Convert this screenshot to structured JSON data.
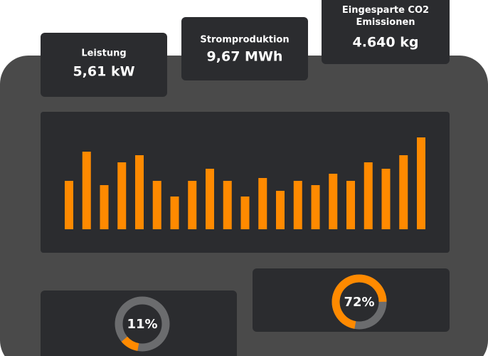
{
  "cards": [
    {
      "label": "Leistung",
      "value": "5,61 kW"
    },
    {
      "label": "Stromproduktion",
      "value": "9,67 MWh"
    },
    {
      "label": "Eingesparte CO2 Emissionen",
      "value": "4.640 kg"
    }
  ],
  "chart_data": {
    "type": "bar",
    "color": "#ff8a00",
    "values": [
      68,
      109,
      62,
      94,
      104,
      68,
      46,
      68,
      85,
      68,
      46,
      72,
      54,
      68,
      62,
      78,
      68,
      94,
      85,
      104,
      129
    ]
  },
  "gauges": [
    {
      "value": 11,
      "label": "11%"
    },
    {
      "value": 72,
      "label": "72%"
    }
  ]
}
